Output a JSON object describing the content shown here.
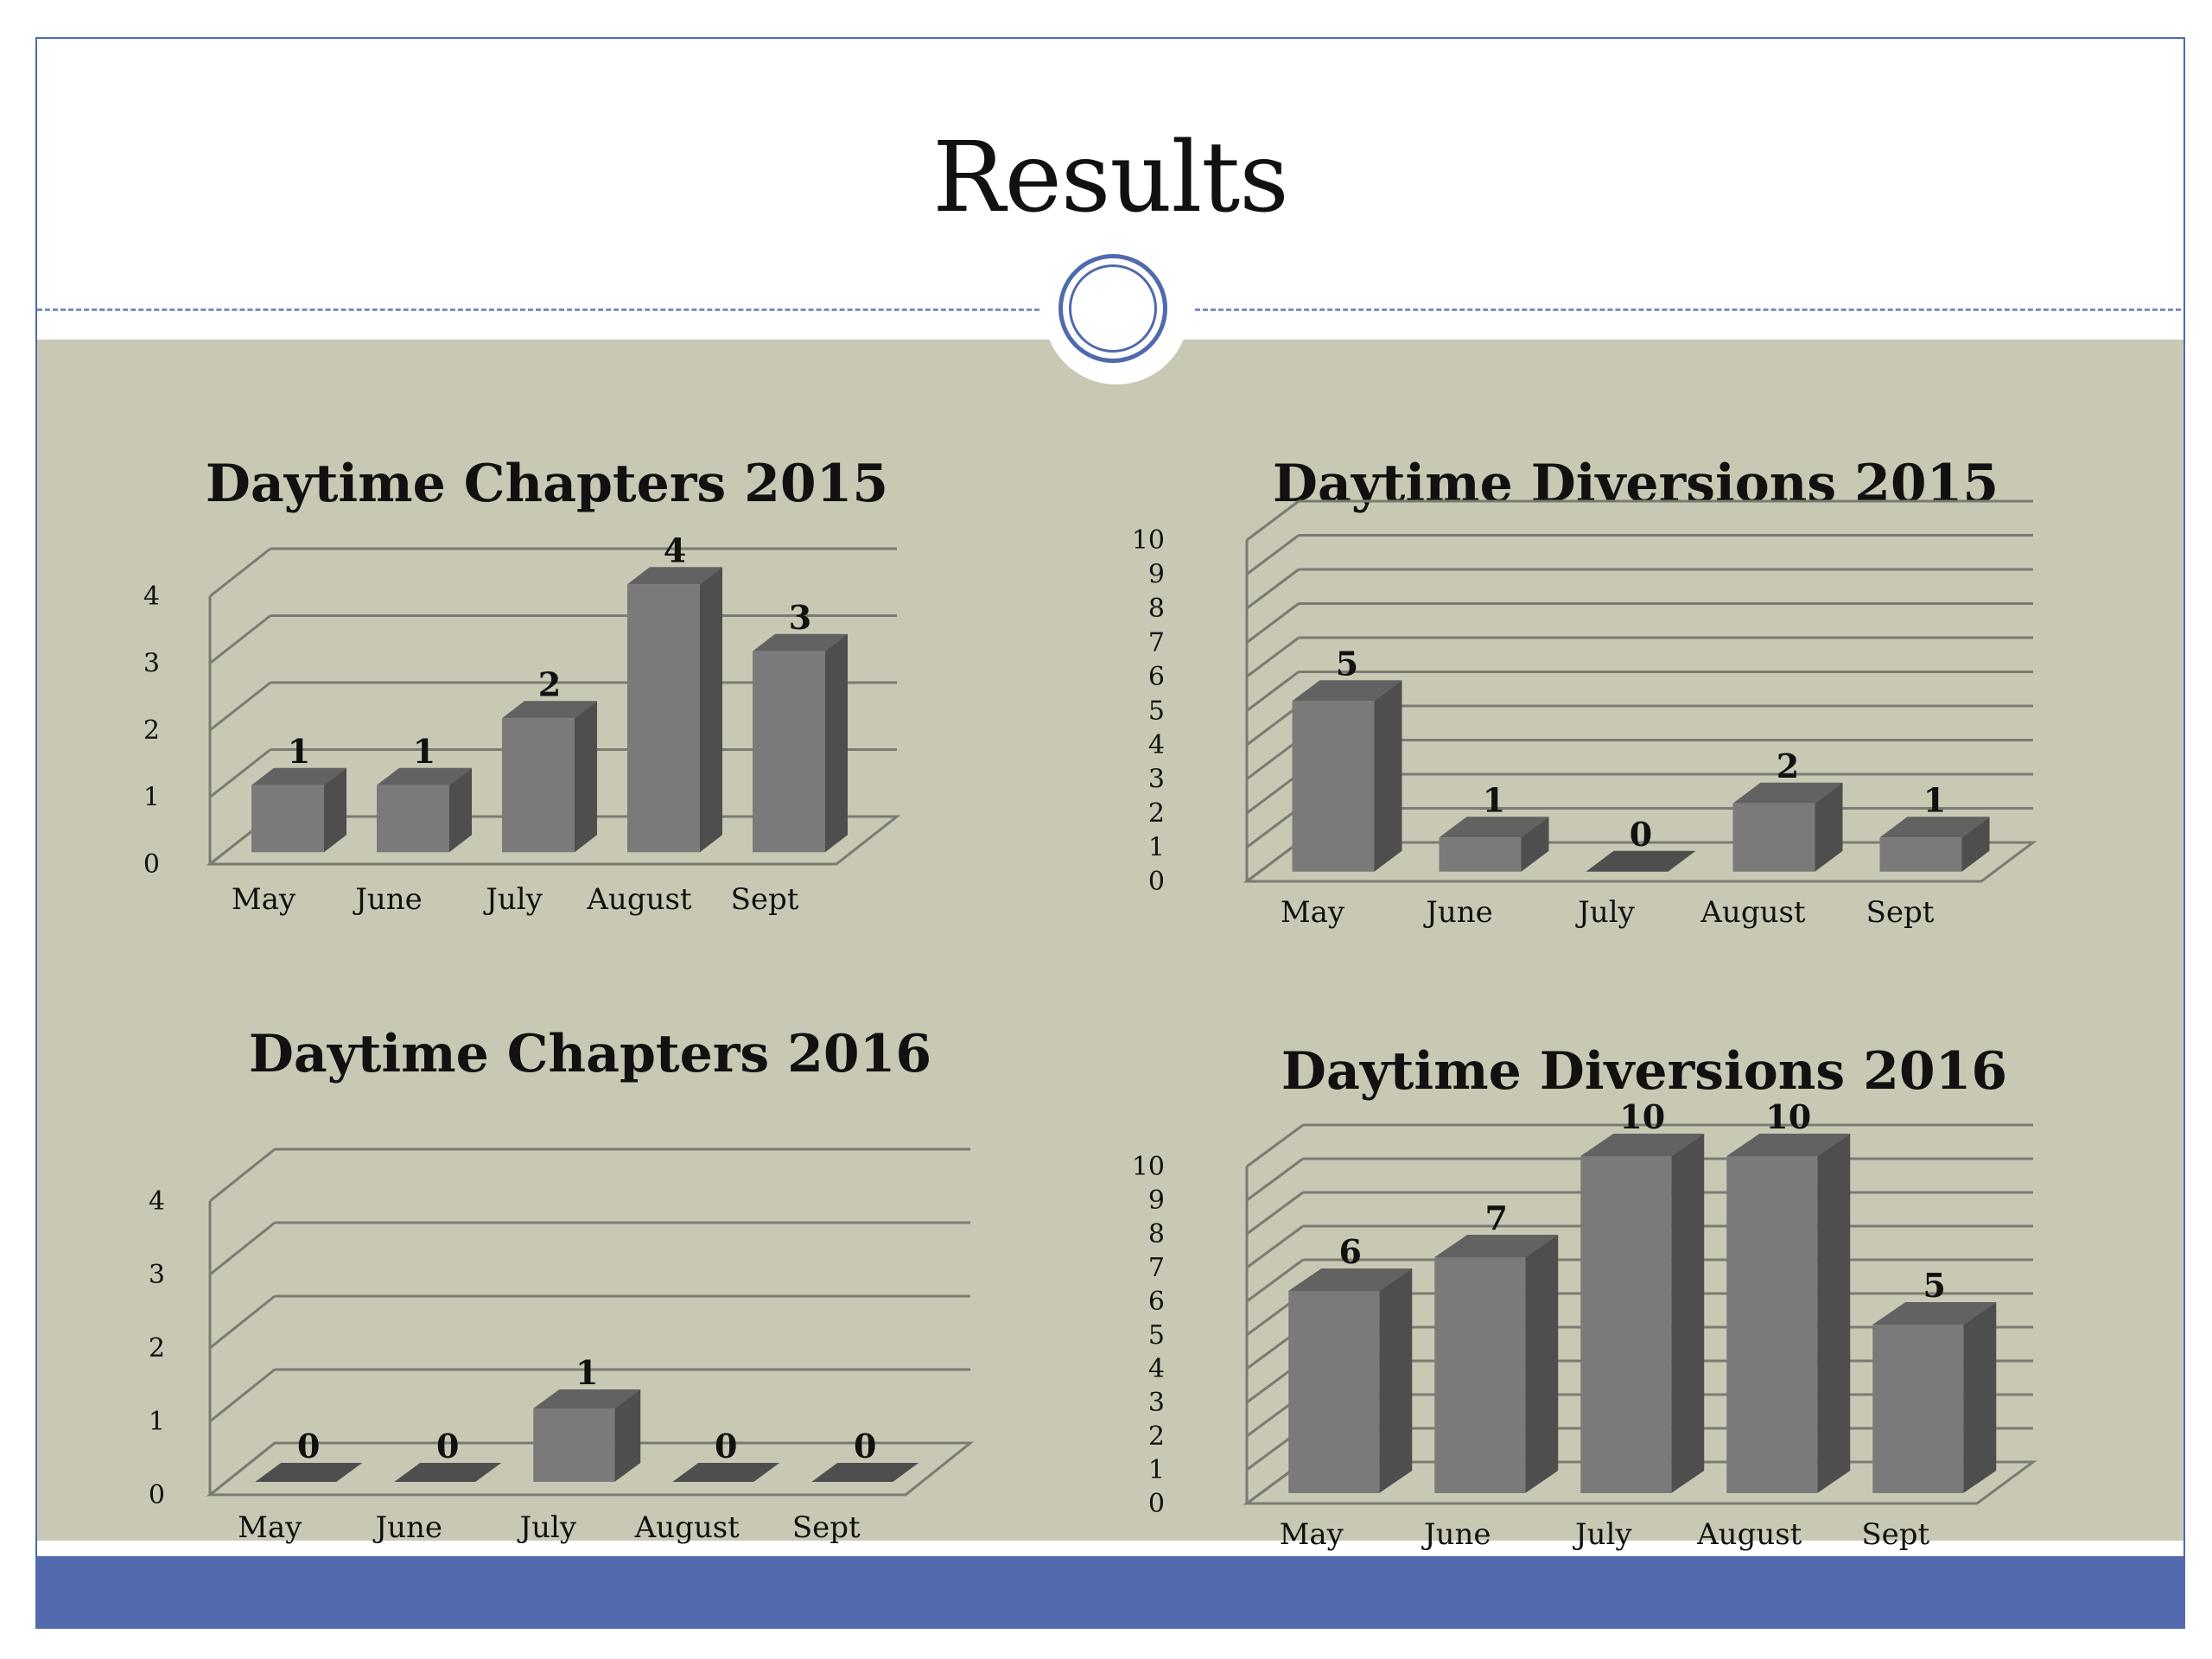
{
  "slide": {
    "title": "Results"
  },
  "colors": {
    "panel": "#c9c8b4",
    "accent": "#536bae",
    "bar_front": "#7a7a7a",
    "bar_side": "#4e4e4e",
    "bar_top": "#626262",
    "grid": "#7b7b72"
  },
  "chart_data": [
    {
      "type": "bar",
      "title": "Daytime Chapters 2015",
      "categories": [
        "May",
        "June",
        "July",
        "August",
        "Sept"
      ],
      "values": [
        1,
        1,
        2,
        4,
        3
      ],
      "ylim": [
        0,
        4
      ],
      "yticks": [
        0,
        1,
        2,
        3,
        4
      ],
      "grid": true,
      "style": "3d"
    },
    {
      "type": "bar",
      "title": "Daytime Diversions 2015",
      "categories": [
        "May",
        "June",
        "July",
        "August",
        "Sept"
      ],
      "values": [
        5,
        1,
        0,
        2,
        1
      ],
      "ylim": [
        0,
        10
      ],
      "yticks": [
        0,
        1,
        2,
        3,
        4,
        5,
        6,
        7,
        8,
        9,
        10
      ],
      "grid": true,
      "style": "3d"
    },
    {
      "type": "bar",
      "title": "Daytime Chapters 2016",
      "categories": [
        "May",
        "June",
        "July",
        "August",
        "Sept"
      ],
      "values": [
        0,
        0,
        1,
        0,
        0
      ],
      "ylim": [
        0,
        4
      ],
      "yticks": [
        0,
        1,
        2,
        3,
        4
      ],
      "grid": true,
      "style": "3d"
    },
    {
      "type": "bar",
      "title": "Daytime Diversions 2016",
      "categories": [
        "May",
        "June",
        "July",
        "August",
        "Sept"
      ],
      "values": [
        6,
        7,
        10,
        10,
        5
      ],
      "ylim": [
        0,
        10
      ],
      "yticks": [
        0,
        1,
        2,
        3,
        4,
        5,
        6,
        7,
        8,
        9,
        10
      ],
      "grid": true,
      "style": "3d"
    }
  ]
}
